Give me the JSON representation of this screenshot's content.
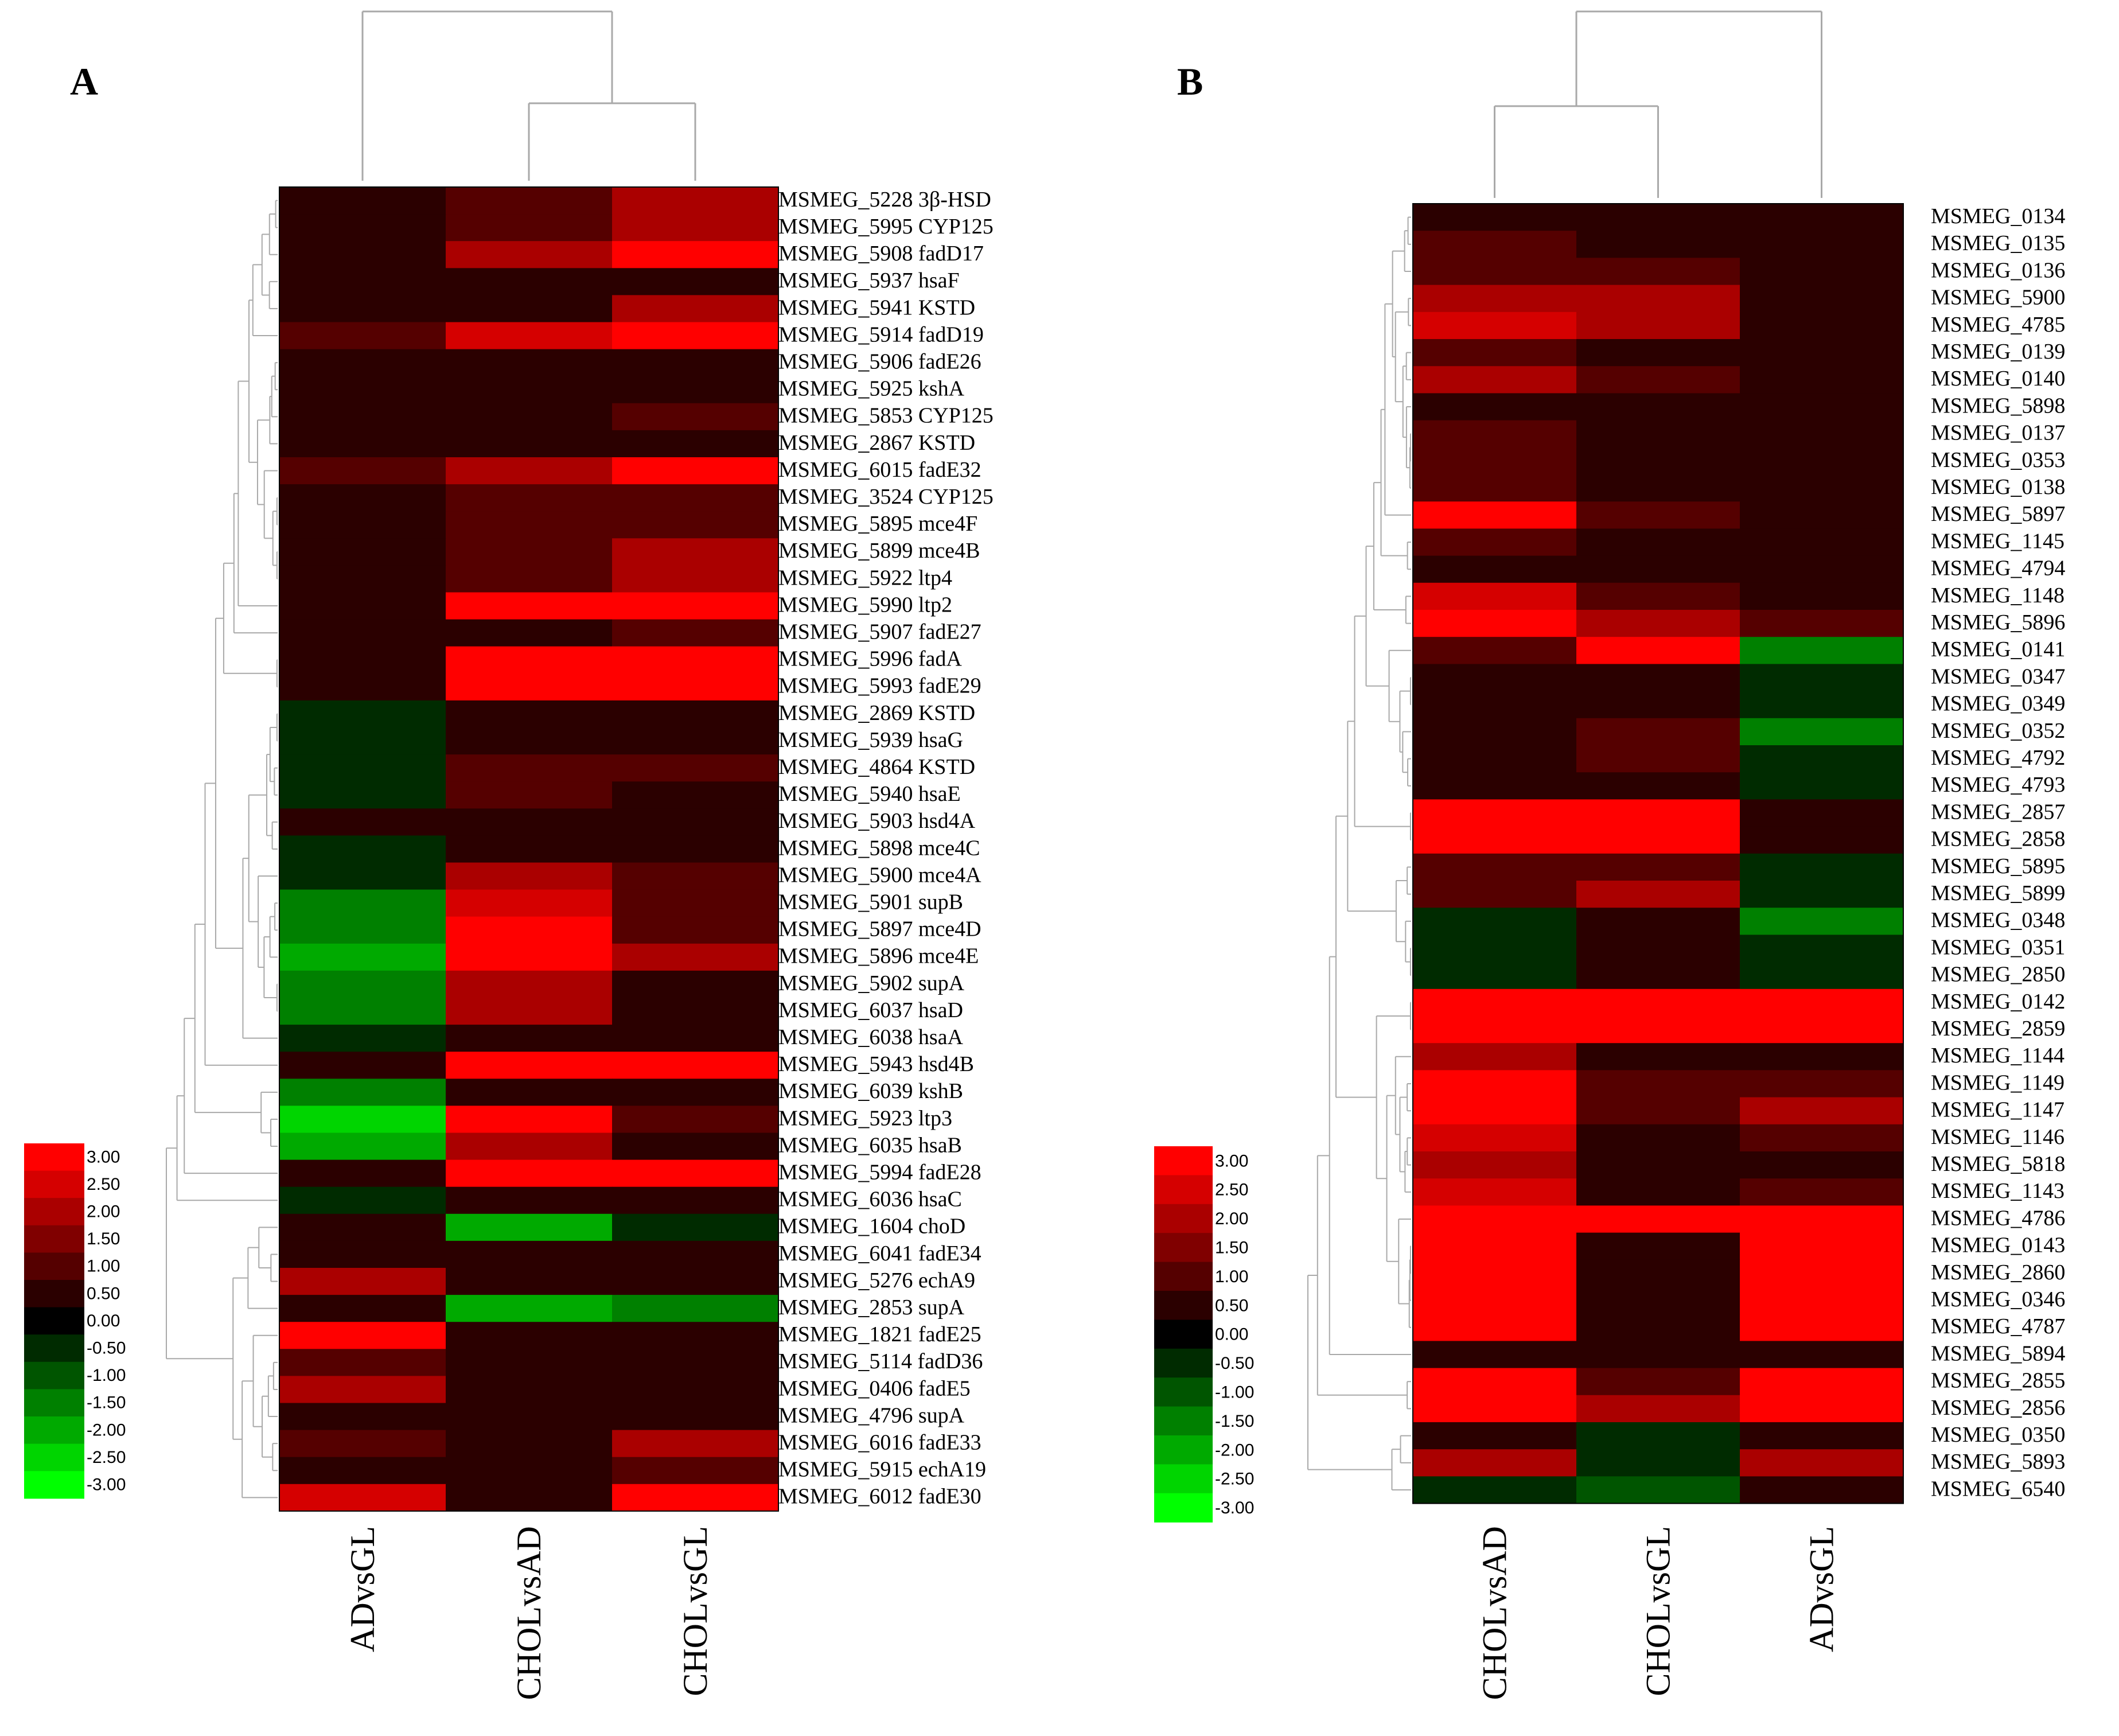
{
  "colors": {
    "low": "#00ff00",
    "mid": "#000000",
    "high": "#ff0000",
    "dendrogram": "#a9a9a9",
    "background": "#ffffff"
  },
  "chart_data": [
    {
      "type": "heatmap",
      "panel": "A",
      "columns": [
        "ADvsGL",
        "CHOLvsAD",
        "CHOLvsGL"
      ],
      "color_range": [
        -3,
        3
      ],
      "legend_ticks": [
        "3.00",
        "2.50",
        "2.00",
        "1.50",
        "1.00",
        "0.50",
        "0.00",
        "-0.50",
        "-1.00",
        "-1.50",
        "-2.00",
        "-2.50",
        "-3.00"
      ],
      "rows": [
        {
          "label": "MSMEG_5228 3β-HSD",
          "values": [
            0.3,
            1.2,
            2.0
          ]
        },
        {
          "label": "MSMEG_5995 CYP125",
          "values": [
            0.6,
            1.2,
            2.0
          ]
        },
        {
          "label": "MSMEG_5908 fadD17",
          "values": [
            0.6,
            2.0,
            3.0
          ]
        },
        {
          "label": "MSMEG_5937 hsaF",
          "values": [
            0.3,
            0.3,
            0.3
          ]
        },
        {
          "label": "MSMEG_5941 KSTD",
          "values": [
            0.6,
            0.6,
            2.0
          ]
        },
        {
          "label": "MSMEG_5914 fadD19",
          "values": [
            1.2,
            2.5,
            3.0
          ]
        },
        {
          "label": "MSMEG_5906 fadE26",
          "values": [
            0.6,
            0.6,
            0.6
          ]
        },
        {
          "label": "MSMEG_5925 kshA",
          "values": [
            0.3,
            0.3,
            0.6
          ]
        },
        {
          "label": "MSMEG_5853 CYP125",
          "values": [
            0.6,
            0.6,
            1.2
          ]
        },
        {
          "label": "MSMEG_2867 KSTD",
          "values": [
            0.3,
            0.6,
            0.6
          ]
        },
        {
          "label": "MSMEG_6015 fadE32",
          "values": [
            1.2,
            2.0,
            3.0
          ]
        },
        {
          "label": "MSMEG_3524 CYP125",
          "values": [
            0.3,
            1.2,
            1.2
          ]
        },
        {
          "label": "MSMEG_5895 mce4F",
          "values": [
            0.3,
            1.2,
            1.2
          ]
        },
        {
          "label": "MSMEG_5899 mce4B",
          "values": [
            0.3,
            1.2,
            2.0
          ]
        },
        {
          "label": "MSMEG_5922 ltp4",
          "values": [
            0.3,
            1.2,
            2.0
          ]
        },
        {
          "label": "MSMEG_5990 ltp2",
          "values": [
            0.6,
            3.0,
            3.0
          ]
        },
        {
          "label": "MSMEG_5907 fadE27",
          "values": [
            0.3,
            0.6,
            1.2
          ]
        },
        {
          "label": "MSMEG_5996 fadA",
          "values": [
            0.6,
            3.0,
            3.0
          ]
        },
        {
          "label": "MSMEG_5993 fadE29",
          "values": [
            0.6,
            3.0,
            3.0
          ]
        },
        {
          "label": "MSMEG_2869 KSTD",
          "values": [
            -0.5,
            0.6,
            0.3
          ]
        },
        {
          "label": "MSMEG_5939 hsaG",
          "values": [
            -0.5,
            0.6,
            0.3
          ]
        },
        {
          "label": "MSMEG_4864 KSTD",
          "values": [
            -0.5,
            1.2,
            1.2
          ]
        },
        {
          "label": "MSMEG_5940 hsaE",
          "values": [
            -0.5,
            1.2,
            0.6
          ]
        },
        {
          "label": "MSMEG_5903 hsd4A",
          "values": [
            0.6,
            0.6,
            0.6
          ]
        },
        {
          "label": "MSMEG_5898 mce4C",
          "values": [
            -0.5,
            0.6,
            0.6
          ]
        },
        {
          "label": "MSMEG_5900 mce4A",
          "values": [
            -0.5,
            2.0,
            1.2
          ]
        },
        {
          "label": "MSMEG_5901 supB",
          "values": [
            -1.5,
            2.5,
            1.2
          ]
        },
        {
          "label": "MSMEG_5897 mce4D",
          "values": [
            -1.5,
            3.0,
            1.2
          ]
        },
        {
          "label": "MSMEG_5896 mce4E",
          "values": [
            -2.0,
            3.0,
            2.0
          ]
        },
        {
          "label": "MSMEG_5902 supA",
          "values": [
            -1.5,
            2.0,
            0.6
          ]
        },
        {
          "label": "MSMEG_6037 hsaD",
          "values": [
            -1.5,
            2.0,
            0.6
          ]
        },
        {
          "label": "MSMEG_6038 hsaA",
          "values": [
            -0.5,
            0.6,
            0.3
          ]
        },
        {
          "label": "MSMEG_5943 hsd4B",
          "values": [
            0.6,
            3.0,
            3.0
          ]
        },
        {
          "label": "MSMEG_6039 kshB",
          "values": [
            -1.5,
            0.6,
            0.3
          ]
        },
        {
          "label": "MSMEG_5923 ltp3",
          "values": [
            -2.5,
            3.0,
            1.2
          ]
        },
        {
          "label": "MSMEG_6035 hsaB",
          "values": [
            -2.0,
            2.0,
            0.3
          ]
        },
        {
          "label": "MSMEG_5994 fadE28",
          "values": [
            0.6,
            3.0,
            3.0
          ]
        },
        {
          "label": "MSMEG_6036 hsaC",
          "values": [
            -0.5,
            0.6,
            0.3
          ]
        },
        {
          "label": "MSMEG_1604 choD",
          "values": [
            0.6,
            -2.0,
            -0.5
          ]
        },
        {
          "label": "MSMEG_6041 fadE34",
          "values": [
            0.6,
            0.3,
            0.6
          ]
        },
        {
          "label": "MSMEG_5276 echA9",
          "values": [
            2.0,
            0.3,
            0.6
          ]
        },
        {
          "label": "MSMEG_2853 supA",
          "values": [
            0.6,
            -2.0,
            -1.5
          ]
        },
        {
          "label": "MSMEG_1821 fadE25",
          "values": [
            3.0,
            0.3,
            0.6
          ]
        },
        {
          "label": "MSMEG_5114 fadD36",
          "values": [
            1.2,
            0.3,
            0.3
          ]
        },
        {
          "label": "MSMEG_0406 fadE5",
          "values": [
            2.0,
            0.3,
            0.3
          ]
        },
        {
          "label": "MSMEG_4796 supA",
          "values": [
            0.6,
            0.3,
            0.6
          ]
        },
        {
          "label": "MSMEG_6016 fadE33",
          "values": [
            1.2,
            0.6,
            2.0
          ]
        },
        {
          "label": "MSMEG_5915 echA19",
          "values": [
            0.6,
            0.6,
            1.2
          ]
        },
        {
          "label": "MSMEG_6012 fadE30",
          "values": [
            2.5,
            0.6,
            3.0
          ]
        }
      ]
    },
    {
      "type": "heatmap",
      "panel": "B",
      "columns": [
        "CHOLvsAD",
        "CHOLvsGL",
        "ADvsGL"
      ],
      "color_range": [
        -3,
        3
      ],
      "legend_ticks": [
        "3.00",
        "2.50",
        "2.00",
        "1.50",
        "1.00",
        "0.50",
        "0.00",
        "-0.50",
        "-1.00",
        "-1.50",
        "-2.00",
        "-2.50",
        "-3.00"
      ],
      "rows": [
        {
          "label": "MSMEG_0134",
          "values": [
            0.6,
            0.6,
            0.3
          ]
        },
        {
          "label": "MSMEG_0135",
          "values": [
            1.2,
            0.6,
            0.3
          ]
        },
        {
          "label": "MSMEG_0136",
          "values": [
            1.2,
            1.2,
            0.3
          ]
        },
        {
          "label": "MSMEG_5900",
          "values": [
            2.0,
            2.0,
            0.3
          ]
        },
        {
          "label": "MSMEG_4785",
          "values": [
            2.5,
            2.0,
            0.3
          ]
        },
        {
          "label": "MSMEG_0139",
          "values": [
            1.2,
            0.6,
            0.3
          ]
        },
        {
          "label": "MSMEG_0140",
          "values": [
            2.0,
            1.2,
            0.3
          ]
        },
        {
          "label": "MSMEG_5898",
          "values": [
            0.6,
            0.6,
            0.3
          ]
        },
        {
          "label": "MSMEG_0137",
          "values": [
            1.2,
            0.6,
            0.6
          ]
        },
        {
          "label": "MSMEG_0353",
          "values": [
            1.2,
            0.6,
            0.6
          ]
        },
        {
          "label": "MSMEG_0138",
          "values": [
            1.2,
            0.6,
            0.6
          ]
        },
        {
          "label": "MSMEG_5897",
          "values": [
            3.0,
            1.2,
            0.6
          ]
        },
        {
          "label": "MSMEG_1145",
          "values": [
            1.2,
            0.6,
            0.6
          ]
        },
        {
          "label": "MSMEG_4794",
          "values": [
            0.6,
            0.3,
            0.3
          ]
        },
        {
          "label": "MSMEG_1148",
          "values": [
            2.5,
            1.2,
            0.6
          ]
        },
        {
          "label": "MSMEG_5896",
          "values": [
            3.0,
            2.0,
            1.2
          ]
        },
        {
          "label": "MSMEG_0141",
          "values": [
            1.2,
            3.0,
            -1.5
          ]
        },
        {
          "label": "MSMEG_0347",
          "values": [
            0.3,
            0.6,
            -0.5
          ]
        },
        {
          "label": "MSMEG_0349",
          "values": [
            0.3,
            0.6,
            -0.5
          ]
        },
        {
          "label": "MSMEG_0352",
          "values": [
            0.3,
            1.2,
            -1.5
          ]
        },
        {
          "label": "MSMEG_4792",
          "values": [
            0.6,
            1.2,
            -0.5
          ]
        },
        {
          "label": "MSMEG_4793",
          "values": [
            0.3,
            0.6,
            -0.5
          ]
        },
        {
          "label": "MSMEG_2857",
          "values": [
            3.0,
            3.0,
            0.3
          ]
        },
        {
          "label": "MSMEG_2858",
          "values": [
            3.0,
            3.0,
            0.3
          ]
        },
        {
          "label": "MSMEG_5895",
          "values": [
            1.2,
            1.2,
            -0.5
          ]
        },
        {
          "label": "MSMEG_5899",
          "values": [
            1.2,
            2.0,
            -0.5
          ]
        },
        {
          "label": "MSMEG_0348",
          "values": [
            -0.5,
            0.6,
            -1.5
          ]
        },
        {
          "label": "MSMEG_0351",
          "values": [
            -0.5,
            0.3,
            -0.5
          ]
        },
        {
          "label": "MSMEG_2850",
          "values": [
            -0.5,
            0.3,
            -0.5
          ]
        },
        {
          "label": "MSMEG_0142",
          "values": [
            3.0,
            3.0,
            3.0
          ]
        },
        {
          "label": "MSMEG_2859",
          "values": [
            3.0,
            3.0,
            3.0
          ]
        },
        {
          "label": "MSMEG_1144",
          "values": [
            2.0,
            0.6,
            0.6
          ]
        },
        {
          "label": "MSMEG_1149",
          "values": [
            3.0,
            1.2,
            1.2
          ]
        },
        {
          "label": "MSMEG_1147",
          "values": [
            3.0,
            1.2,
            2.0
          ]
        },
        {
          "label": "MSMEG_1146",
          "values": [
            2.5,
            0.6,
            1.2
          ]
        },
        {
          "label": "MSMEG_5818",
          "values": [
            2.0,
            0.6,
            0.6
          ]
        },
        {
          "label": "MSMEG_1143",
          "values": [
            2.5,
            0.6,
            1.2
          ]
        },
        {
          "label": "MSMEG_4786",
          "values": [
            3.0,
            3.0,
            3.0
          ]
        },
        {
          "label": "MSMEG_0143",
          "values": [
            3.0,
            0.6,
            3.0
          ]
        },
        {
          "label": "MSMEG_2860",
          "values": [
            3.0,
            0.6,
            3.0
          ]
        },
        {
          "label": "MSMEG_0346",
          "values": [
            3.0,
            0.6,
            3.0
          ]
        },
        {
          "label": "MSMEG_4787",
          "values": [
            3.0,
            0.6,
            3.0
          ]
        },
        {
          "label": "MSMEG_5894",
          "values": [
            0.6,
            0.3,
            0.6
          ]
        },
        {
          "label": "MSMEG_2855",
          "values": [
            3.0,
            1.2,
            3.0
          ]
        },
        {
          "label": "MSMEG_2856",
          "values": [
            3.0,
            2.0,
            3.0
          ]
        },
        {
          "label": "MSMEG_0350",
          "values": [
            0.3,
            -0.5,
            0.3
          ]
        },
        {
          "label": "MSMEG_5893",
          "values": [
            2.0,
            -0.5,
            2.0
          ]
        },
        {
          "label": "MSMEG_6540",
          "values": [
            -0.5,
            -1.0,
            0.3
          ]
        }
      ]
    }
  ]
}
